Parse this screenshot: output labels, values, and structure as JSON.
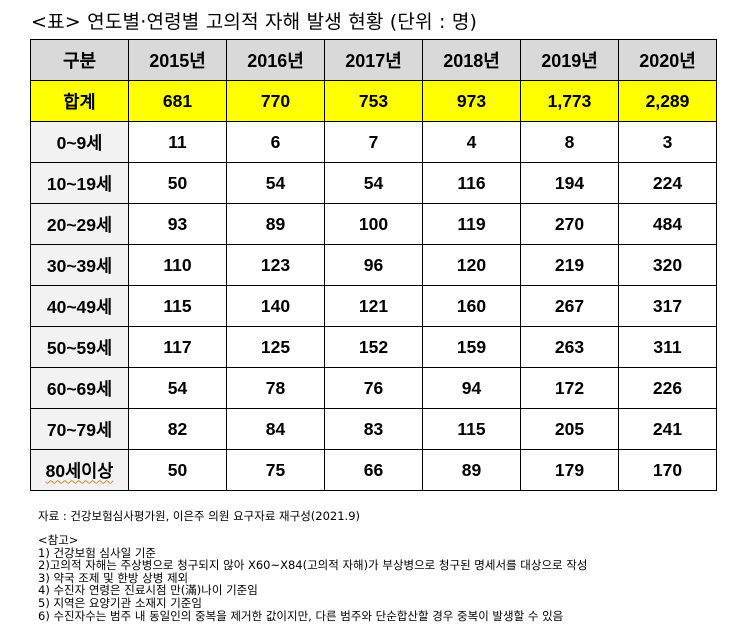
{
  "title": "<표> 연도별·연령별 고의적 자해 발생 현황 (단위 : 명)",
  "table": {
    "corner_label": "구분",
    "years": [
      "2015년",
      "2016년",
      "2017년",
      "2018년",
      "2019년",
      "2020년"
    ],
    "total": {
      "label": "합계",
      "values": [
        "681",
        "770",
        "753",
        "973",
        "1,773",
        "2,289"
      ]
    },
    "rows": [
      {
        "label": "0~9세",
        "values": [
          "11",
          "6",
          "7",
          "4",
          "8",
          "3"
        ]
      },
      {
        "label": "10~19세",
        "values": [
          "50",
          "54",
          "54",
          "116",
          "194",
          "224"
        ]
      },
      {
        "label": "20~29세",
        "values": [
          "93",
          "89",
          "100",
          "119",
          "270",
          "484"
        ]
      },
      {
        "label": "30~39세",
        "values": [
          "110",
          "123",
          "96",
          "120",
          "219",
          "320"
        ]
      },
      {
        "label": "40~49세",
        "values": [
          "115",
          "140",
          "121",
          "160",
          "267",
          "317"
        ]
      },
      {
        "label": "50~59세",
        "values": [
          "117",
          "125",
          "152",
          "159",
          "263",
          "311"
        ]
      },
      {
        "label": "60~69세",
        "values": [
          "54",
          "78",
          "76",
          "94",
          "172",
          "226"
        ]
      },
      {
        "label": "70~79세",
        "values": [
          "82",
          "84",
          "83",
          "115",
          "205",
          "241"
        ]
      },
      {
        "label": "80세이상",
        "values": [
          "50",
          "75",
          "66",
          "89",
          "179",
          "170"
        ]
      }
    ]
  },
  "source": "자료 : 건강보험심사평가원, 이은주 의원 요구자료 재구성(2021.9)",
  "notes": {
    "heading": "<참고>",
    "items": [
      "1) 건강보험 심사일 기준",
      "2)고의적 자해는 주상병으로 청구되지 않아 X60~X84(고의적 자해)가 부상병으로 청구된 명세서를 대상으로 작성",
      "3) 약국 조제 및 한방 상병 제외",
      "4) 수진자 연령은 진료시점 만(滿)나이 기준임",
      "5) 지역은 요양기관 소재지 기준임",
      "6) 수진자수는 범주 내 동일인의 중복을 제거한 값이지만, 다른 범주와 단순합산할 경우 중복이 발생할 수 있음"
    ]
  },
  "colors": {
    "header_bg": "#d9d9d9",
    "total_bg": "#ffff00",
    "rowhead_bg": "#f2f2f2",
    "border": "#000000"
  }
}
